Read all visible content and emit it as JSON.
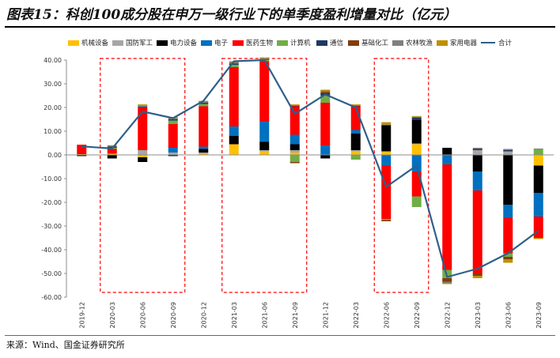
{
  "title": "图表15：科创100成分股在申万一级行业下的单季度盈利增量对比（亿元）",
  "source": "来源：Wind、国金证券研究所",
  "chart_data": {
    "type": "bar",
    "stacked": true,
    "title": "图表15：科创100成分股在申万一级行业下的单季度盈利增量对比（亿元）",
    "ylim": [
      -60,
      40
    ],
    "yticks": [
      "40.00",
      "30.00",
      "20.00",
      "10.00",
      "0.00",
      "-10.00",
      "-20.00",
      "-30.00",
      "-40.00",
      "-50.00",
      "-60.00"
    ],
    "ytick_values": [
      40,
      30,
      20,
      10,
      0,
      -10,
      -20,
      -30,
      -40,
      -50,
      -60
    ],
    "legend_position": "top",
    "categories": [
      "2019-12",
      "2020-03",
      "2020-06",
      "2020-09",
      "2020-12",
      "2021-03",
      "2021-06",
      "2021-09",
      "2021-12",
      "2022-03",
      "2022-06",
      "2022-09",
      "2022-12",
      "2023-03",
      "2023-06",
      "2023-09"
    ],
    "series": [
      {
        "name": "机械设备",
        "color": "#FFC000",
        "values": [
          0.3,
          0.5,
          -1.0,
          0,
          0.5,
          4.5,
          1.5,
          1.0,
          0,
          1.5,
          1.5,
          4.5,
          0,
          0,
          0,
          -4.5
        ]
      },
      {
        "name": "国防军工",
        "color": "#A6A6A6",
        "values": [
          0,
          0,
          2.0,
          1.0,
          0.5,
          0,
          0.5,
          1.0,
          0,
          0.5,
          0,
          0.3,
          0,
          2.0,
          1.5,
          0
        ]
      },
      {
        "name": "电力设备",
        "color": "#000000",
        "values": [
          -0.5,
          -1.5,
          -2.0,
          -0.5,
          1.5,
          3.5,
          3.5,
          2.5,
          -1.5,
          7.0,
          11.0,
          10.0,
          3.0,
          -7.0,
          -21.0,
          -11.5
        ]
      },
      {
        "name": "电子",
        "color": "#0070C0",
        "values": [
          0,
          0,
          0,
          2.0,
          1.0,
          4.0,
          8.5,
          4.0,
          4.0,
          1.5,
          -4.5,
          -7.0,
          -4.0,
          -8.0,
          -5.5,
          -10.0
        ]
      },
      {
        "name": "医药生物",
        "color": "#FF0000",
        "values": [
          4.0,
          2.0,
          18.0,
          10.0,
          17.0,
          25.0,
          25.5,
          12.0,
          18.0,
          10.0,
          -22.5,
          -10.5,
          -44.5,
          -35.0,
          -15.0,
          -9.0
        ]
      },
      {
        "name": "计算机",
        "color": "#70AD47",
        "values": [
          0,
          0.5,
          0,
          1.5,
          1.0,
          1.0,
          0.5,
          -3.0,
          3.0,
          -2.0,
          -0.5,
          -4.5,
          -3.5,
          0,
          -1.5,
          2.5
        ]
      },
      {
        "name": "通信",
        "color": "#1F3864",
        "values": [
          0,
          0.5,
          0.3,
          0.5,
          0.5,
          0.5,
          0.3,
          0.2,
          1.0,
          0.2,
          0,
          1.0,
          0,
          0.5,
          0.5,
          0
        ]
      },
      {
        "name": "基础化工",
        "color": "#843C0C",
        "values": [
          0,
          0,
          0,
          0,
          0,
          0,
          0,
          -0.5,
          0.5,
          0,
          -0.5,
          0,
          -1.5,
          -1.0,
          -1.0,
          0
        ]
      },
      {
        "name": "农林牧渔",
        "color": "#7F7F7F",
        "values": [
          0,
          0.3,
          0.5,
          0.5,
          0.5,
          0.5,
          0.5,
          0.3,
          0.5,
          0.3,
          0.3,
          0.3,
          -0.5,
          0.5,
          0.5,
          0.2
        ]
      },
      {
        "name": "家用电器",
        "color": "#BF9000",
        "values": [
          0,
          0.3,
          0.5,
          0.5,
          0.3,
          0.5,
          0.3,
          0.3,
          0.5,
          0.3,
          1.0,
          0.3,
          -0.5,
          -1.0,
          -1.5,
          -0.5
        ]
      }
    ],
    "line": {
      "name": "合计",
      "color": "#2E5F8A",
      "values": [
        3.6,
        2.7,
        18.3,
        15.5,
        22.8,
        39.5,
        40.0,
        17.3,
        25.5,
        20.0,
        -13.5,
        -4.5,
        -51.5,
        -48.0,
        -41.5,
        -32.0
      ]
    },
    "highlight_groups": [
      [
        "2020-03",
        "2020-09"
      ],
      [
        "2021-03",
        "2021-09"
      ],
      [
        "2022-06",
        "2022-09"
      ]
    ],
    "grid": false
  }
}
